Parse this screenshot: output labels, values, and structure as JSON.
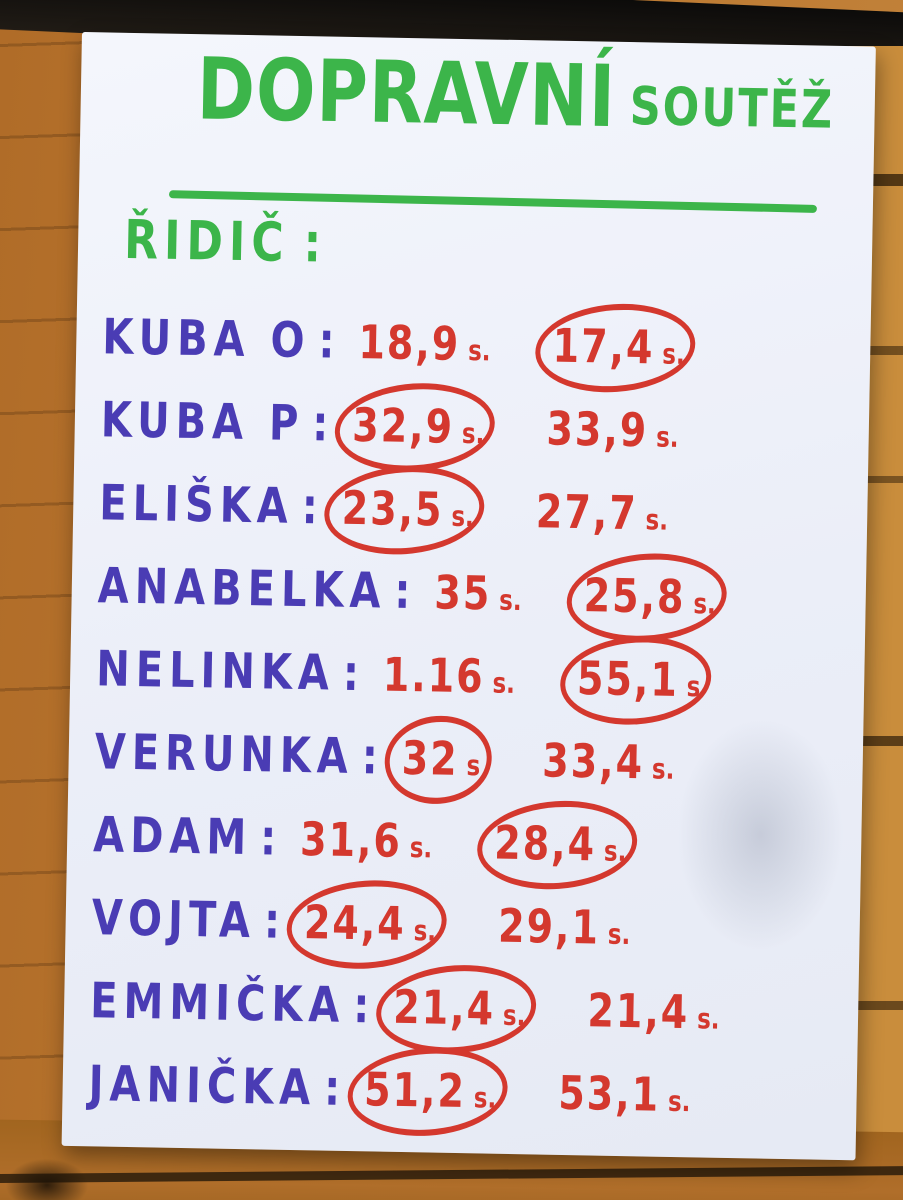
{
  "title": {
    "main": "DOPRAVNÍ",
    "sub": "SOUTĚŽ"
  },
  "section_label": "ŘIDIČ",
  "separator": ":",
  "rows": [
    {
      "name": "KUBA O",
      "t1": {
        "v": "18,9",
        "u": "s."
      },
      "t2": {
        "v": "17,4",
        "u": "s."
      },
      "circled": 2
    },
    {
      "name": "KUBA P",
      "t1": {
        "v": "32,9",
        "u": "s."
      },
      "t2": {
        "v": "33,9",
        "u": "s."
      },
      "circled": 1
    },
    {
      "name": "ELIŠKA",
      "t1": {
        "v": "23,5",
        "u": "s."
      },
      "t2": {
        "v": "27,7",
        "u": "s."
      },
      "circled": 1
    },
    {
      "name": "ANABELKA",
      "t1": {
        "v": "35",
        "u": "s."
      },
      "t2": {
        "v": "25,8",
        "u": "s."
      },
      "circled": 2
    },
    {
      "name": "NELINKA",
      "t1": {
        "v": "1.16",
        "u": "s."
      },
      "t2": {
        "v": "55,1",
        "u": "s"
      },
      "circled": 2
    },
    {
      "name": "VERUNKA",
      "t1": {
        "v": "32",
        "u": "s"
      },
      "t2": {
        "v": "33,4",
        "u": "s."
      },
      "circled": 1
    },
    {
      "name": "ADAM",
      "t1": {
        "v": "31,6",
        "u": "s."
      },
      "t2": {
        "v": "28,4",
        "u": "s."
      },
      "circled": 2
    },
    {
      "name": "VOJTA",
      "t1": {
        "v": "24,4",
        "u": "s."
      },
      "t2": {
        "v": "29,1",
        "u": "s."
      },
      "circled": 1
    },
    {
      "name": "EMMIČKA",
      "t1": {
        "v": "21,4",
        "u": "s."
      },
      "t2": {
        "v": "21,4",
        "u": "s."
      },
      "circled": 1
    },
    {
      "name": "JANIČKA",
      "t1": {
        "v": "51,2",
        "u": "s."
      },
      "t2": {
        "v": "53,1",
        "u": "s."
      },
      "circled": 1
    }
  ],
  "colors": {
    "marker_green": "#3cb54a",
    "ink_purple": "#4a3cb4",
    "marker_red": "#d4382e",
    "paper": "#eef1f9",
    "wood": "#b5722c"
  }
}
